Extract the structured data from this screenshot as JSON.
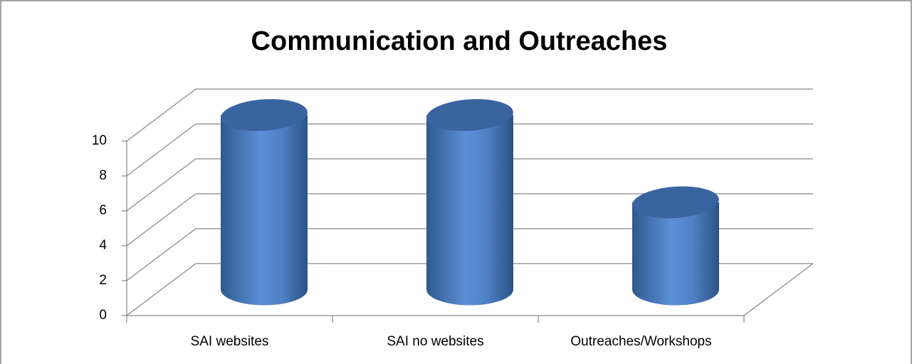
{
  "chart_data": {
    "type": "bar3d",
    "title": "Communication and Outreaches",
    "categories": [
      "SAI websites",
      "SAI no websites",
      "Outreaches/Workshops"
    ],
    "values": [
      10,
      10,
      5
    ],
    "color": "#4f81bd",
    "ylim": [
      0,
      10
    ],
    "yticks": [
      0,
      2,
      4,
      6,
      8,
      10
    ],
    "grid": true
  }
}
